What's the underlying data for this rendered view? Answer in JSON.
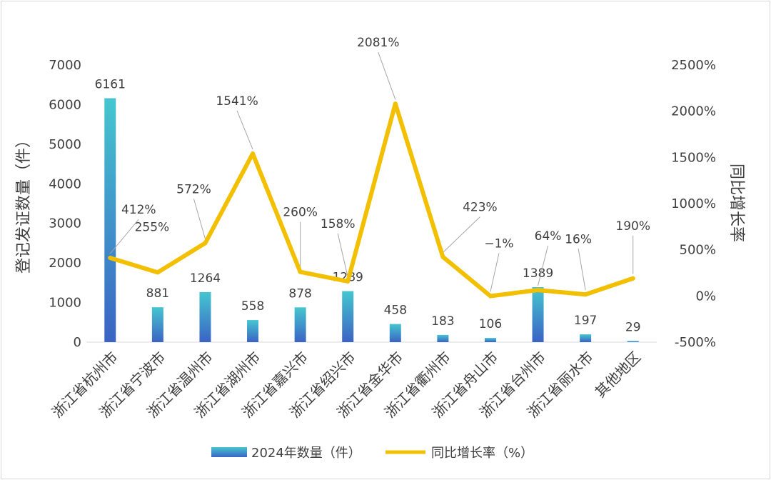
{
  "chart_data": {
    "type": "bar+line",
    "categories": [
      "浙江省杭州市",
      "浙江省宁波市",
      "浙江省温州市",
      "浙江省湖州市",
      "浙江省嘉兴市",
      "浙江省绍兴市",
      "浙江省金华市",
      "浙江省衢州市",
      "浙江省舟山市",
      "浙江省台州市",
      "浙江省丽水市",
      "其他地区"
    ],
    "series": [
      {
        "name": "2024年数量（件）",
        "type": "bar",
        "axis": "left",
        "values": [
          6161,
          881,
          1264,
          558,
          878,
          1289,
          458,
          183,
          106,
          1389,
          197,
          29
        ],
        "labels": [
          "6161",
          "881",
          "1264",
          "558",
          "878",
          "1289",
          "458",
          "183",
          "106",
          "1389",
          "197",
          "29"
        ]
      },
      {
        "name": "同比增长率（%）",
        "type": "line",
        "axis": "right",
        "values": [
          412,
          255,
          572,
          1541,
          260,
          158,
          2081,
          423,
          -1,
          64,
          16,
          190
        ],
        "labels": [
          "412%",
          "255%",
          "572%",
          "1541%",
          "260%",
          "158%",
          "2081%",
          "423%",
          "−1%",
          "64%",
          "16%",
          "190%"
        ]
      }
    ],
    "ylabel": "登记发证数量（件）",
    "ylabel_right": "同比增长率",
    "ylim": [
      0,
      7000
    ],
    "yticks": [
      "0",
      "1000",
      "2000",
      "3000",
      "4000",
      "5000",
      "6000",
      "7000"
    ],
    "ylim_right": [
      -500,
      2500
    ],
    "yticks_right": [
      "-500%",
      "0%",
      "500%",
      "1000%",
      "1500%",
      "2000%",
      "2500%"
    ],
    "legend_position": "bottom",
    "grid": false,
    "colors": {
      "bar_top": "#45c6cf",
      "bar_bottom": "#3b63c4",
      "line": "#f2c000",
      "leader": "#a6a6a6"
    }
  }
}
